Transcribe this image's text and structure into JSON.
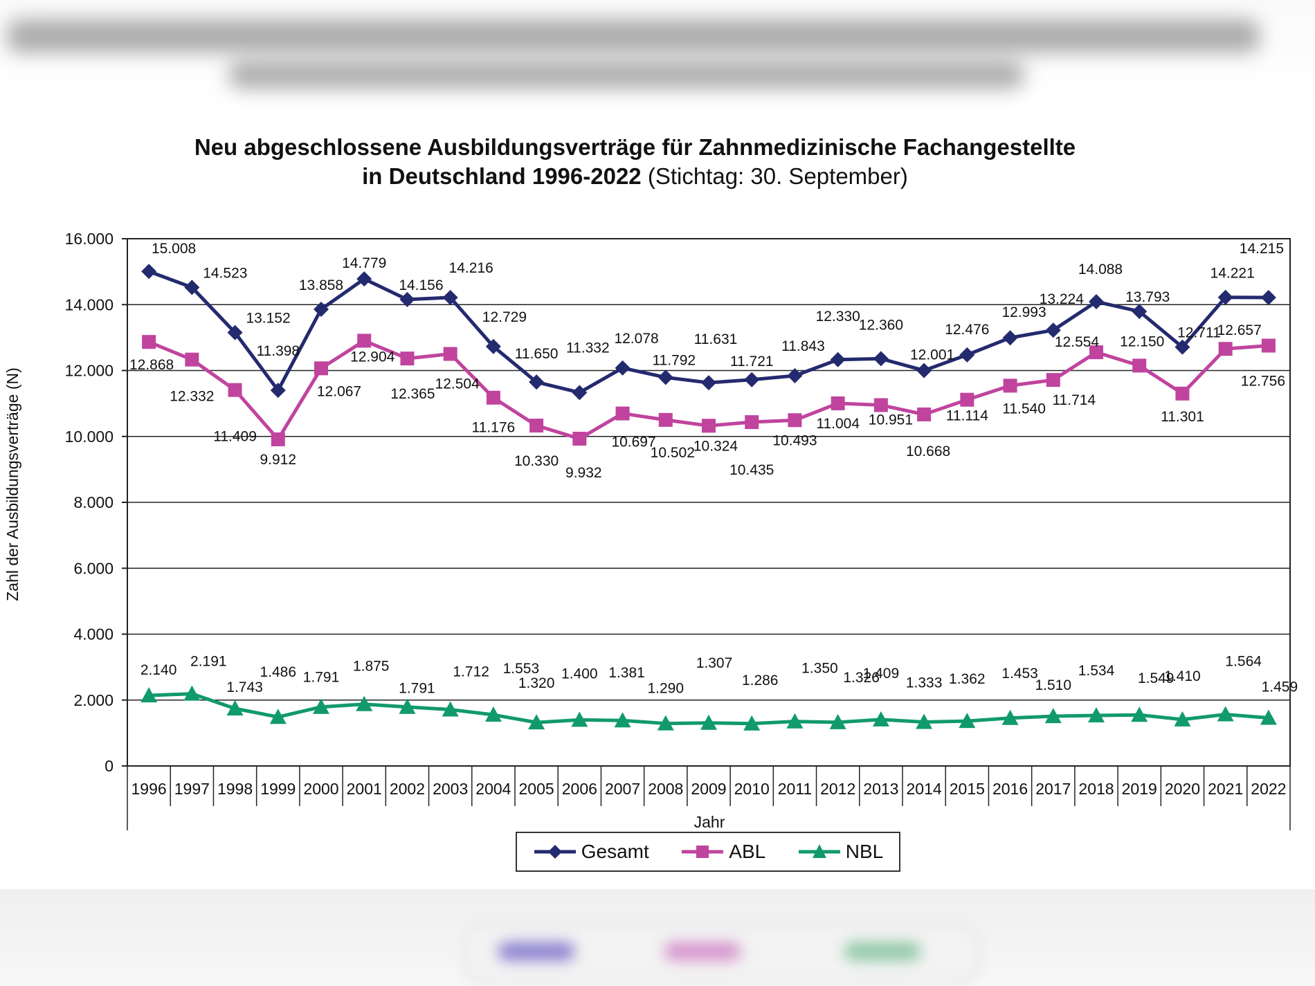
{
  "header": {
    "title_line1": "Neu abgeschlossene Ausbildungsverträge für Zahnmedizinische Fachangestellte",
    "title_line2_bold": "in Deutschland 1996-2022",
    "title_line2_normal": "(Stichtag: 30. September)"
  },
  "chart_data": {
    "type": "line",
    "title": "Neu abgeschlossene Ausbildungsverträge für Zahnmedizinische Fachangestellte in Deutschland 1996-2022 (Stichtag: 30. September)",
    "xlabel": "Jahr",
    "ylabel": "Zahl der Ausbildungsverträge (N)",
    "ylim": [
      0,
      16000
    ],
    "yticks": [
      0,
      2000,
      4000,
      6000,
      8000,
      10000,
      12000,
      14000,
      16000
    ],
    "ytick_labels": [
      "0",
      "2.000",
      "4.000",
      "6.000",
      "8.000",
      "10.000",
      "12.000",
      "14.000",
      "16.000"
    ],
    "grid": "horizontal",
    "legend_position": "bottom",
    "categories": [
      "1996",
      "1997",
      "1998",
      "1999",
      "2000",
      "2001",
      "2002",
      "2003",
      "2004",
      "2005",
      "2006",
      "2007",
      "2008",
      "2009",
      "2010",
      "2011",
      "2012",
      "2013",
      "2014",
      "2015",
      "2016",
      "2017",
      "2018",
      "2019",
      "2020",
      "2021",
      "2022"
    ],
    "series": [
      {
        "name": "Gesamt",
        "color": "#232a6e",
        "marker": "diamond",
        "values": [
          15008,
          14523,
          13152,
          11398,
          13858,
          14779,
          14156,
          14216,
          12729,
          11650,
          11332,
          12078,
          11792,
          11631,
          11721,
          11843,
          12330,
          12360,
          12001,
          12476,
          12993,
          13224,
          14088,
          13793,
          12711,
          14221,
          14215
        ],
        "labels": [
          "15.008",
          "14.523",
          "13.152",
          "11.398",
          "13.858",
          "14.779",
          "14.156",
          "14.216",
          "12.729",
          "11.650",
          "11.332",
          "12.078",
          "11.792",
          "11.631",
          "11.721",
          "11.843",
          "12.330",
          "12.360",
          "12.001",
          "12.476",
          "12.993",
          "13.224",
          "14.088",
          "13.793",
          "12.711",
          "14.221",
          "14.215"
        ]
      },
      {
        "name": "ABL",
        "color": "#c0449e",
        "marker": "square",
        "values": [
          12868,
          12332,
          11409,
          9912,
          12067,
          12904,
          12365,
          12504,
          11176,
          10330,
          9932,
          10697,
          10502,
          10324,
          10435,
          10493,
          11004,
          10951,
          10668,
          11114,
          11540,
          11714,
          12554,
          12150,
          11301,
          12657,
          12756
        ],
        "labels": [
          "12.868",
          "12.332",
          "11.409",
          "9.912",
          "12.067",
          "12.904",
          "12.365",
          "12.504",
          "11.176",
          "10.330",
          "9.932",
          "10.697",
          "10.502",
          "10.324",
          "10.435",
          "10.493",
          "11.004",
          "10.951",
          "10.668",
          "11.114",
          "11.540",
          "11.714",
          "12.554",
          "12.150",
          "11.301",
          "12.657",
          "12.756"
        ]
      },
      {
        "name": "NBL",
        "color": "#119a6c",
        "marker": "triangle",
        "values": [
          2140,
          2191,
          1743,
          1486,
          1791,
          1875,
          1791,
          1712,
          1553,
          1320,
          1400,
          1381,
          1290,
          1307,
          1286,
          1350,
          1326,
          1409,
          1333,
          1362,
          1453,
          1510,
          1534,
          1549,
          1410,
          1564,
          1459
        ],
        "labels": [
          "2.140",
          "2.191",
          "1.743",
          "1.486",
          "1.791",
          "1.875",
          "1.791",
          "1.712",
          "1.553",
          "1.320",
          "1.400",
          "1.381",
          "1.290",
          "1.307",
          "1.286",
          "1.350",
          "1.326",
          "1.409",
          "1.333",
          "1.362",
          "1.453",
          "1.510",
          "1.534",
          "1.549",
          "1.410",
          "1.564",
          "1.459"
        ]
      }
    ]
  }
}
